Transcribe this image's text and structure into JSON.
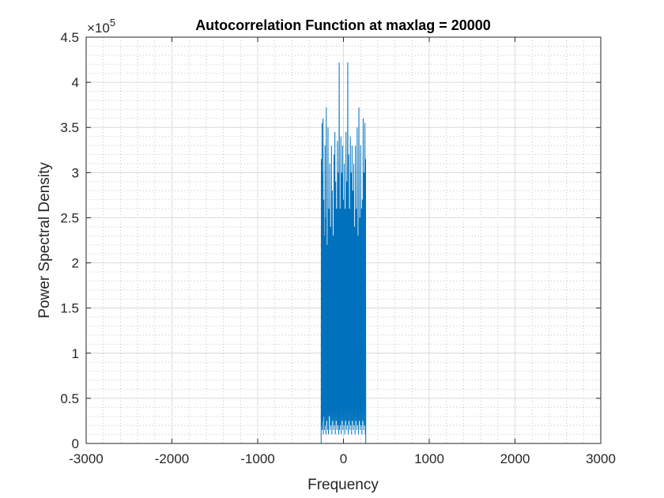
{
  "chart_data": {
    "type": "line",
    "title": "Autocorrelation Function at maxlag = 20000",
    "xlabel": "Frequency",
    "ylabel": "Power Spectral Density",
    "xlim": [
      -3000,
      3000
    ],
    "ylim": [
      0,
      450000
    ],
    "x_ticks": [
      -3000,
      -2000,
      -1000,
      0,
      1000,
      2000,
      3000
    ],
    "x_tick_labels": [
      "-3000",
      "-2000",
      "-1000",
      "0",
      "1000",
      "2000",
      "3000"
    ],
    "y_ticks": [
      0,
      50000,
      100000,
      150000,
      200000,
      250000,
      300000,
      350000,
      400000,
      450000
    ],
    "y_tick_labels": [
      "0",
      "0.5",
      "1",
      "1.5",
      "2",
      "2.5",
      "3",
      "3.5",
      "4",
      "4.5"
    ],
    "y_exponent_label": {
      "base": "×10",
      "exponent": "5"
    },
    "grid": true,
    "minor_grid": true,
    "series": [
      {
        "color": "#0072bd",
        "x": [
          -2500,
          -260,
          -258,
          -255,
          -250,
          -248,
          -245,
          -240,
          -238,
          -235,
          -230,
          -228,
          -225,
          -220,
          -215,
          -212,
          -210,
          -205,
          -200,
          -195,
          -190,
          -185,
          -180,
          -175,
          -170,
          -165,
          -160,
          -155,
          -150,
          -145,
          -140,
          -135,
          -130,
          -125,
          -120,
          -115,
          -110,
          -105,
          -100,
          -95,
          -90,
          -85,
          -80,
          -75,
          -70,
          -65,
          -60,
          -55,
          -50,
          -45,
          -40,
          -35,
          -30,
          -25,
          -20,
          -15,
          -10,
          -5,
          0,
          5,
          10,
          15,
          20,
          25,
          30,
          35,
          40,
          45,
          50,
          55,
          60,
          65,
          70,
          75,
          80,
          85,
          90,
          95,
          100,
          105,
          110,
          115,
          120,
          125,
          130,
          135,
          140,
          145,
          150,
          155,
          160,
          165,
          170,
          175,
          180,
          185,
          190,
          195,
          200,
          205,
          210,
          215,
          220,
          225,
          230,
          235,
          240,
          245,
          250,
          255,
          258,
          260,
          2500
        ],
        "y": [
          0,
          0,
          315000,
          20000,
          355000,
          15000,
          300000,
          25000,
          360000,
          10000,
          270000,
          30000,
          230000,
          15000,
          330000,
          20000,
          250000,
          10000,
          372000,
          25000,
          220000,
          15000,
          350000,
          10000,
          260000,
          30000,
          310000,
          15000,
          240000,
          20000,
          330000,
          10000,
          280000,
          25000,
          230000,
          15000,
          320000,
          20000,
          345000,
          10000,
          290000,
          25000,
          260000,
          15000,
          335000,
          20000,
          300000,
          10000,
          422000,
          15000,
          260000,
          20000,
          340000,
          10000,
          300000,
          25000,
          330000,
          15000,
          270000,
          20000,
          310000,
          10000,
          260000,
          25000,
          345000,
          15000,
          290000,
          20000,
          422000,
          10000,
          320000,
          25000,
          260000,
          15000,
          340000,
          20000,
          300000,
          10000,
          330000,
          25000,
          280000,
          15000,
          310000,
          20000,
          240000,
          10000,
          330000,
          25000,
          260000,
          15000,
          350000,
          20000,
          230000,
          10000,
          372000,
          25000,
          250000,
          15000,
          330000,
          20000,
          260000,
          10000,
          270000,
          25000,
          360000,
          15000,
          300000,
          20000,
          355000,
          10000,
          315000,
          0,
          0
        ]
      }
    ]
  }
}
